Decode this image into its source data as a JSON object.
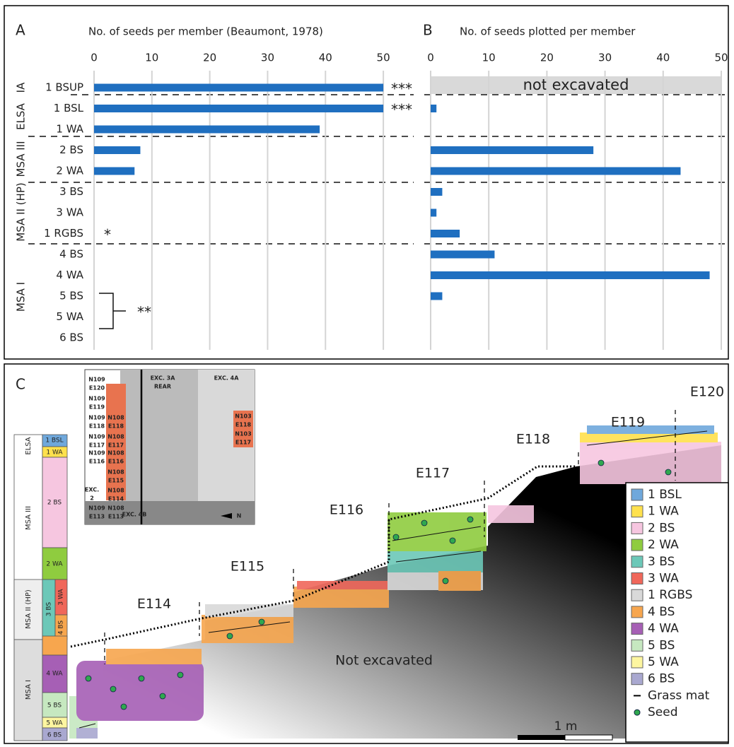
{
  "figure": {
    "panel_labels": [
      "A",
      "B",
      "C"
    ]
  },
  "chart_data": [
    {
      "type": "bar",
      "orientation": "horizontal",
      "title": "No. of seeds per member (Beaumont, 1978)",
      "categories": [
        "1 BSUP",
        "1 BSL",
        "1 WA",
        "2 BS",
        "2 WA",
        "3 BS",
        "3 WA",
        "1 RGBS",
        "4 BS",
        "4 WA",
        "5 BS",
        "5 WA",
        "6 BS"
      ],
      "values": [
        50,
        50,
        39,
        8,
        7,
        null,
        null,
        null,
        null,
        null,
        null,
        null,
        null
      ],
      "color": "#1f6fc0",
      "xlim": [
        0,
        55
      ],
      "xticks": [
        0,
        10,
        20,
        30,
        40,
        50
      ],
      "grid": true,
      "annotations": [
        "***",
        "***",
        "*",
        "**"
      ]
    },
    {
      "type": "bar",
      "orientation": "horizontal",
      "title": "No. of seeds plotted per member",
      "values": [
        null,
        1,
        null,
        28,
        43,
        2,
        1,
        5,
        11,
        48,
        2,
        null,
        null
      ],
      "color": "#1f6fc0",
      "xlim": [
        0,
        50
      ],
      "xticks": [
        0,
        10,
        20,
        30,
        40,
        50
      ],
      "grid": true,
      "annotation": "not excavated"
    }
  ],
  "groups": [
    "IA",
    "ELSA",
    "MSA III",
    "MSA II (HP)",
    "MSA I"
  ],
  "panel_c": {
    "sections": [
      "E114",
      "E115",
      "E116",
      "E117",
      "E118",
      "E119",
      "E120"
    ],
    "not_excavated": "Not excavated",
    "legend": [
      {
        "name": "1 BSL",
        "color": "#6fa8dc"
      },
      {
        "name": "1 WA",
        "color": "#ffe14d"
      },
      {
        "name": "2 BS",
        "color": "#f6c6e0"
      },
      {
        "name": "2 WA",
        "color": "#8fcc3f"
      },
      {
        "name": "3 BS",
        "color": "#6cc8b8"
      },
      {
        "name": "3 WA",
        "color": "#f0675a"
      },
      {
        "name": "1 RGBS",
        "color": "#d9d9d9"
      },
      {
        "name": "4 BS",
        "color": "#f7a64e"
      },
      {
        "name": "4 WA",
        "color": "#a65fb5"
      },
      {
        "name": "5 BS",
        "color": "#c6e8c0"
      },
      {
        "name": "5 WA",
        "color": "#fdf6a0"
      },
      {
        "name": "6 BS",
        "color": "#a9a8d0"
      }
    ],
    "grass_mat": "Grass mat",
    "seed": "Seed",
    "scale": "1 m",
    "inset": [
      "N109",
      "E120",
      "N109",
      "E119",
      "N109",
      "N108",
      "E118",
      "E118",
      "N109",
      "N108",
      "E117",
      "E117",
      "N109",
      "N108",
      "E116",
      "E116",
      "N108",
      "E115",
      "EXC.",
      "2",
      "N108",
      "E114",
      "N109",
      "N108",
      "E113",
      "E113",
      "EXC. 3A",
      "REAR",
      "EXC. 4A",
      "N103",
      "E118",
      "N103",
      "E117",
      "EXC. 4B",
      "N"
    ]
  }
}
